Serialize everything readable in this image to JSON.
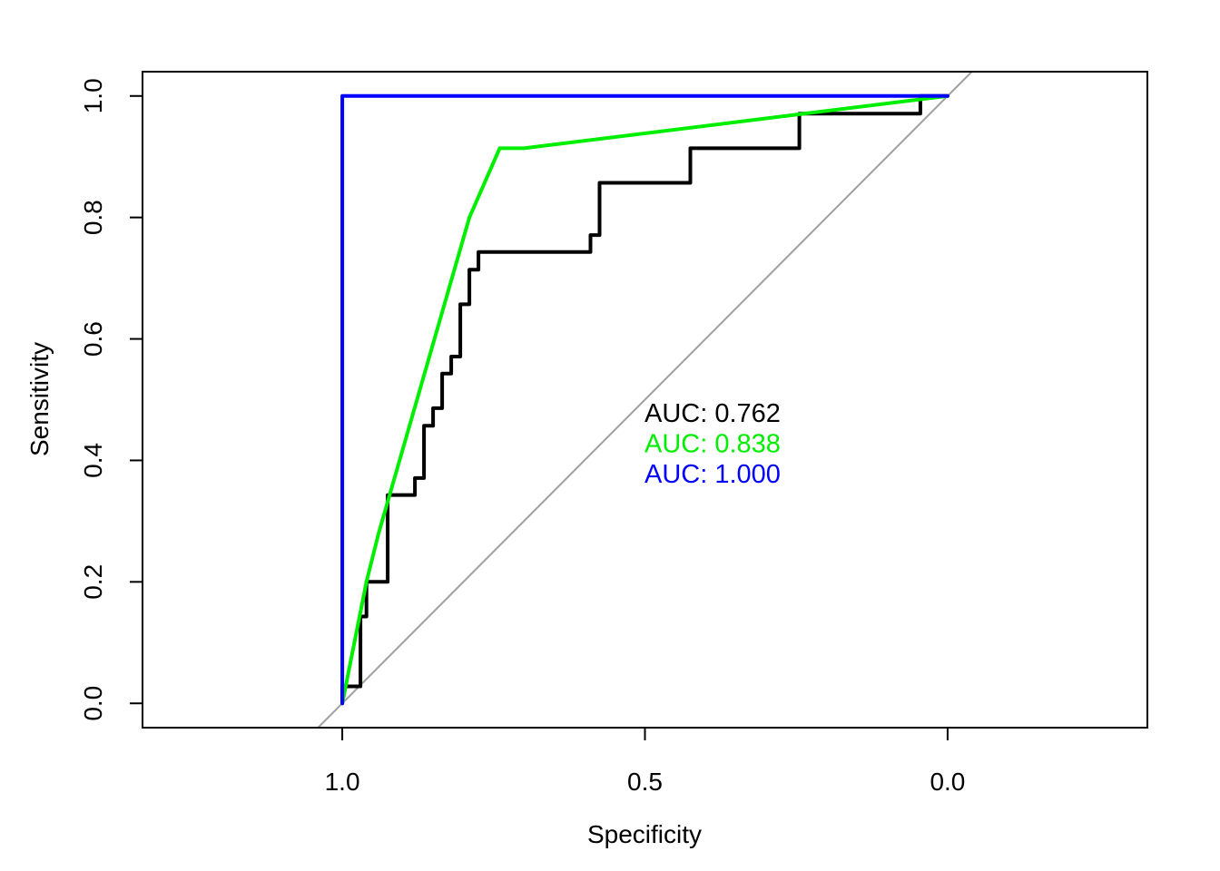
{
  "chart_data": {
    "type": "line",
    "title": "",
    "xlabel": "Specificity",
    "ylabel": "Sensitivity",
    "xlim": [
      1.33,
      -0.33
    ],
    "ylim": [
      -0.04,
      1.04
    ],
    "x_reversed": true,
    "x_ticks": [
      1.0,
      0.5,
      0.0
    ],
    "x_tick_labels": [
      "1.0",
      "0.5",
      "0.0"
    ],
    "y_ticks": [
      0.0,
      0.2,
      0.4,
      0.6,
      0.8,
      1.0
    ],
    "y_tick_labels": [
      "0.0",
      "0.2",
      "0.4",
      "0.6",
      "0.8",
      "1.0"
    ],
    "grid": false,
    "reference_line": {
      "color": "#a0a0a0",
      "description": "specificity + sensitivity = 1"
    },
    "series": [
      {
        "color": "#000000",
        "auc_label": "AUC: 0.762",
        "x": [
          1.0,
          1.0,
          0.97,
          0.97,
          0.96,
          0.96,
          0.95,
          0.95,
          0.925,
          0.925,
          0.88,
          0.88,
          0.865,
          0.865,
          0.85,
          0.85,
          0.835,
          0.835,
          0.82,
          0.82,
          0.805,
          0.805,
          0.79,
          0.79,
          0.775,
          0.775,
          0.59,
          0.59,
          0.575,
          0.575,
          0.425,
          0.425,
          0.245,
          0.245,
          0.045,
          0.045,
          0.0
        ],
        "y": [
          0.0,
          0.028,
          0.028,
          0.143,
          0.143,
          0.2,
          0.2,
          0.2,
          0.2,
          0.343,
          0.343,
          0.371,
          0.371,
          0.457,
          0.457,
          0.486,
          0.486,
          0.543,
          0.543,
          0.571,
          0.571,
          0.657,
          0.657,
          0.714,
          0.714,
          0.743,
          0.743,
          0.771,
          0.771,
          0.857,
          0.857,
          0.914,
          0.914,
          0.971,
          0.971,
          1.0,
          1.0
        ]
      },
      {
        "color": "#00ee00",
        "auc_label": "AUC: 0.838",
        "x": [
          1.0,
          0.96,
          0.94,
          0.79,
          0.74,
          0.7,
          0.0
        ],
        "y": [
          0.0,
          0.2,
          0.28,
          0.8,
          0.914,
          0.914,
          1.0
        ]
      },
      {
        "color": "#0000ff",
        "auc_label": "AUC: 1.000",
        "x": [
          1.0,
          1.0,
          0.0
        ],
        "y": [
          0.0,
          1.0,
          1.0
        ]
      }
    ]
  }
}
